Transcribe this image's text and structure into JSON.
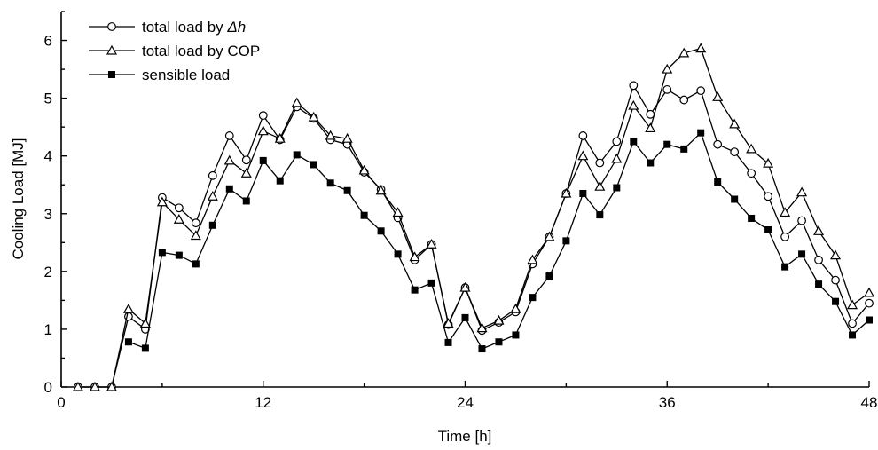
{
  "chart_data": {
    "type": "line",
    "xlabel": "Time [h]",
    "ylabel": "Cooling Load [MJ]",
    "xlim": [
      0,
      48
    ],
    "ylim": [
      0,
      6.5
    ],
    "xticks": [
      0,
      12,
      24,
      36,
      48
    ],
    "yticks": [
      0,
      1,
      2,
      3,
      4,
      5,
      6
    ],
    "grid": false,
    "legend_position": "top-left",
    "series": [
      {
        "name_prefix": "total load by ",
        "name_symbol": "Δh",
        "marker": "open-circle",
        "x": [
          1,
          2,
          3,
          4,
          5,
          6,
          7,
          8,
          9,
          10,
          11,
          12,
          13,
          14,
          15,
          16,
          17,
          18,
          19,
          20,
          21,
          22,
          23,
          24,
          25,
          26,
          27,
          28,
          29,
          30,
          31,
          32,
          33,
          34,
          35,
          36,
          37,
          38,
          39,
          40,
          41,
          42,
          43,
          44,
          45,
          46,
          47,
          48
        ],
        "values": [
          0,
          0,
          0,
          1.22,
          1.0,
          3.28,
          3.1,
          2.84,
          3.66,
          4.35,
          3.93,
          4.7,
          4.28,
          4.85,
          4.65,
          4.28,
          4.2,
          3.72,
          3.42,
          2.93,
          2.2,
          2.47,
          1.08,
          1.72,
          0.98,
          1.12,
          1.3,
          2.13,
          2.6,
          3.35,
          4.35,
          3.88,
          4.25,
          5.22,
          4.72,
          5.15,
          4.97,
          5.13,
          4.2,
          4.07,
          3.7,
          3.3,
          2.6,
          2.88,
          2.2,
          1.85,
          1.1,
          1.45
        ]
      },
      {
        "name": "total load by COP",
        "marker": "open-triangle",
        "x": [
          1,
          2,
          3,
          4,
          5,
          6,
          7,
          8,
          9,
          10,
          11,
          12,
          13,
          14,
          15,
          16,
          17,
          18,
          19,
          20,
          21,
          22,
          23,
          24,
          25,
          26,
          27,
          28,
          29,
          30,
          31,
          32,
          33,
          34,
          35,
          36,
          37,
          38,
          39,
          40,
          41,
          42,
          43,
          44,
          45,
          46,
          47,
          48
        ],
        "values": [
          0,
          0,
          0,
          1.35,
          1.1,
          3.2,
          2.9,
          2.62,
          3.3,
          3.92,
          3.7,
          4.43,
          4.3,
          4.92,
          4.67,
          4.35,
          4.3,
          3.75,
          3.4,
          3.02,
          2.25,
          2.47,
          1.1,
          1.72,
          1.02,
          1.15,
          1.35,
          2.2,
          2.6,
          3.35,
          4.0,
          3.47,
          3.95,
          4.87,
          4.48,
          5.5,
          5.78,
          5.86,
          5.02,
          4.55,
          4.12,
          3.87,
          3.02,
          3.37,
          2.7,
          2.28,
          1.42,
          1.63
        ]
      },
      {
        "name": "sensible load",
        "marker": "filled-square",
        "x": [
          4,
          5,
          6,
          7,
          8,
          9,
          10,
          11,
          12,
          13,
          14,
          15,
          16,
          17,
          18,
          19,
          20,
          21,
          22,
          23,
          24,
          25,
          26,
          27,
          28,
          29,
          30,
          31,
          32,
          33,
          34,
          35,
          36,
          37,
          38,
          39,
          40,
          41,
          42,
          43,
          44,
          45,
          46,
          47,
          48
        ],
        "values": [
          0.78,
          0.67,
          2.33,
          2.28,
          2.13,
          2.8,
          3.43,
          3.22,
          3.92,
          3.57,
          4.02,
          3.85,
          3.53,
          3.4,
          2.97,
          2.7,
          2.3,
          1.68,
          1.8,
          0.77,
          1.2,
          0.66,
          0.78,
          0.9,
          1.55,
          1.92,
          2.53,
          3.35,
          2.98,
          3.45,
          4.25,
          3.88,
          4.2,
          4.12,
          4.4,
          3.55,
          3.25,
          2.92,
          2.72,
          2.08,
          2.3,
          1.78,
          1.48,
          0.9,
          1.16
        ]
      }
    ]
  }
}
